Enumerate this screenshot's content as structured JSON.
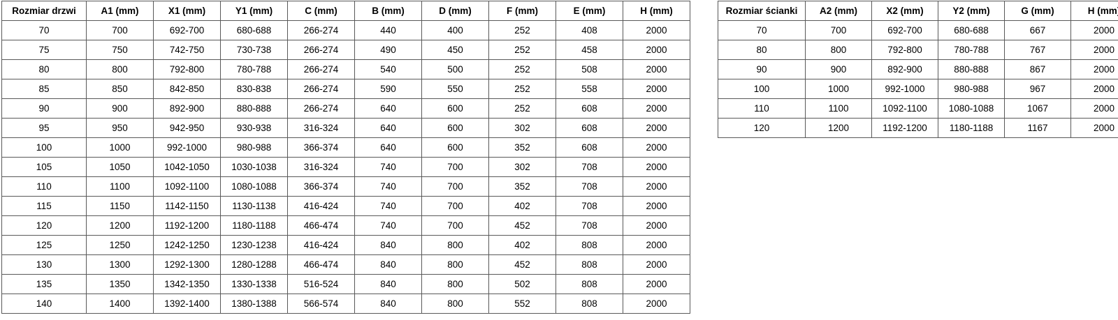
{
  "colors": {
    "border": "#595959",
    "text": "#000000",
    "background": "#ffffff"
  },
  "left_table": {
    "name": "door-sizes-table",
    "headers": [
      "Rozmiar drzwi",
      "A1 (mm)",
      "X1 (mm)",
      "Y1 (mm)",
      "C (mm)",
      "B (mm)",
      "D (mm)",
      "F (mm)",
      "E (mm)",
      "H (mm)"
    ],
    "rows": [
      [
        "70",
        "700",
        "692-700",
        "680-688",
        "266-274",
        "440",
        "400",
        "252",
        "408",
        "2000"
      ],
      [
        "75",
        "750",
        "742-750",
        "730-738",
        "266-274",
        "490",
        "450",
        "252",
        "458",
        "2000"
      ],
      [
        "80",
        "800",
        "792-800",
        "780-788",
        "266-274",
        "540",
        "500",
        "252",
        "508",
        "2000"
      ],
      [
        "85",
        "850",
        "842-850",
        "830-838",
        "266-274",
        "590",
        "550",
        "252",
        "558",
        "2000"
      ],
      [
        "90",
        "900",
        "892-900",
        "880-888",
        "266-274",
        "640",
        "600",
        "252",
        "608",
        "2000"
      ],
      [
        "95",
        "950",
        "942-950",
        "930-938",
        "316-324",
        "640",
        "600",
        "302",
        "608",
        "2000"
      ],
      [
        "100",
        "1000",
        "992-1000",
        "980-988",
        "366-374",
        "640",
        "600",
        "352",
        "608",
        "2000"
      ],
      [
        "105",
        "1050",
        "1042-1050",
        "1030-1038",
        "316-324",
        "740",
        "700",
        "302",
        "708",
        "2000"
      ],
      [
        "110",
        "1100",
        "1092-1100",
        "1080-1088",
        "366-374",
        "740",
        "700",
        "352",
        "708",
        "2000"
      ],
      [
        "115",
        "1150",
        "1142-1150",
        "1130-1138",
        "416-424",
        "740",
        "700",
        "402",
        "708",
        "2000"
      ],
      [
        "120",
        "1200",
        "1192-1200",
        "1180-1188",
        "466-474",
        "740",
        "700",
        "452",
        "708",
        "2000"
      ],
      [
        "125",
        "1250",
        "1242-1250",
        "1230-1238",
        "416-424",
        "840",
        "800",
        "402",
        "808",
        "2000"
      ],
      [
        "130",
        "1300",
        "1292-1300",
        "1280-1288",
        "466-474",
        "840",
        "800",
        "452",
        "808",
        "2000"
      ],
      [
        "135",
        "1350",
        "1342-1350",
        "1330-1338",
        "516-524",
        "840",
        "800",
        "502",
        "808",
        "2000"
      ],
      [
        "140",
        "1400",
        "1392-1400",
        "1380-1388",
        "566-574",
        "840",
        "800",
        "552",
        "808",
        "2000"
      ]
    ]
  },
  "right_table": {
    "name": "wall-sizes-table",
    "headers": [
      "Rozmiar ścianki",
      "A2 (mm)",
      "X2 (mm)",
      "Y2 (mm)",
      "G (mm)",
      "H (mm)"
    ],
    "rows": [
      [
        "70",
        "700",
        "692-700",
        "680-688",
        "667",
        "2000"
      ],
      [
        "80",
        "800",
        "792-800",
        "780-788",
        "767",
        "2000"
      ],
      [
        "90",
        "900",
        "892-900",
        "880-888",
        "867",
        "2000"
      ],
      [
        "100",
        "1000",
        "992-1000",
        "980-988",
        "967",
        "2000"
      ],
      [
        "110",
        "1100",
        "1092-1100",
        "1080-1088",
        "1067",
        "2000"
      ],
      [
        "120",
        "1200",
        "1192-1200",
        "1180-1188",
        "1167",
        "2000"
      ]
    ]
  }
}
